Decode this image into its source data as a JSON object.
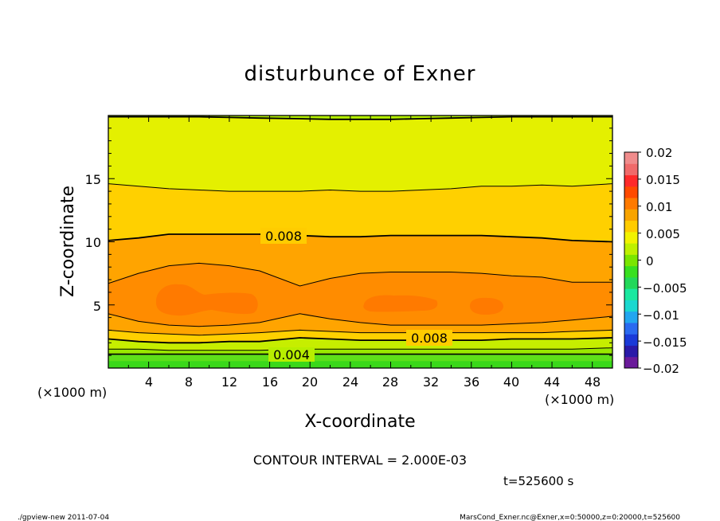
{
  "chart_data": {
    "type": "heatmap",
    "title": "disturbunce of Exner",
    "xlabel": "X-coordinate",
    "ylabel": "Z-coordinate",
    "x_unit": "(×1000 m)",
    "z_unit": "(×1000 m)",
    "xlim": [
      0,
      50
    ],
    "ylim": [
      0,
      20
    ],
    "xticks": [
      "4",
      "8",
      "12",
      "16",
      "20",
      "24",
      "28",
      "32",
      "36",
      "40",
      "44",
      "48"
    ],
    "yticks": [
      "5",
      "10",
      "15"
    ],
    "contour_labels": [
      "0.008",
      "0.008",
      "0.004"
    ],
    "contour_levels": [
      {
        "value": 0.004,
        "z": [
          1.1,
          1.1,
          1.1,
          1.1,
          1.1,
          1.1,
          1.1,
          1.1,
          1.1,
          1.1,
          1.1,
          1.1,
          1.1,
          1.1,
          1.1,
          1.1,
          1.1
        ]
      },
      {
        "value": 0.006,
        "z": [
          1.5,
          1.5,
          1.4,
          1.4,
          1.4,
          1.4,
          1.5,
          1.5,
          1.5,
          1.5,
          1.5,
          1.5,
          1.5,
          1.5,
          1.5,
          1.5,
          1.6
        ]
      },
      {
        "value": 0.008,
        "z": [
          2.3,
          2.1,
          2.0,
          2.0,
          2.1,
          2.1,
          2.4,
          2.3,
          2.2,
          2.2,
          2.2,
          2.2,
          2.2,
          2.3,
          2.3,
          2.3,
          2.4
        ]
      },
      {
        "value": 0.01,
        "z": [
          3.0,
          2.8,
          2.7,
          2.6,
          2.7,
          2.8,
          3.0,
          2.9,
          2.8,
          2.8,
          2.8,
          2.8,
          2.8,
          2.8,
          2.8,
          2.9,
          3.0
        ]
      },
      {
        "value": 0.012,
        "z": [
          4.3,
          3.7,
          3.4,
          3.3,
          3.4,
          3.6,
          4.3,
          3.9,
          3.6,
          3.4,
          3.4,
          3.4,
          3.4,
          3.5,
          3.6,
          3.8,
          4.1
        ]
      },
      {
        "value": 0.012,
        "z": [
          6.7,
          7.5,
          8.1,
          8.3,
          8.1,
          7.7,
          6.5,
          7.1,
          7.5,
          7.6,
          7.6,
          7.6,
          7.5,
          7.3,
          7.2,
          6.8,
          6.8
        ]
      },
      {
        "value": 0.01,
        "z": [
          10.1,
          10.3,
          10.6,
          10.6,
          10.6,
          10.6,
          10.5,
          10.4,
          10.4,
          10.5,
          10.5,
          10.5,
          10.5,
          10.4,
          10.3,
          10.1,
          10.0
        ]
      },
      {
        "value": 0.008,
        "z": [
          14.6,
          14.4,
          14.2,
          14.1,
          14.0,
          14.0,
          14.0,
          14.1,
          14.0,
          14.0,
          14.1,
          14.2,
          14.4,
          14.4,
          14.5,
          14.4,
          14.6
        ]
      },
      {
        "value": 0.006,
        "z": [
          19.9,
          19.9,
          19.9,
          19.9,
          19.85,
          19.8,
          19.75,
          19.7,
          19.7,
          19.7,
          19.75,
          19.8,
          19.85,
          19.9,
          19.9,
          19.9,
          19.9
        ]
      }
    ],
    "contour_x": [
      0,
      3,
      6,
      9,
      12,
      15,
      19,
      22,
      25,
      28,
      31,
      34,
      37,
      40,
      43,
      46,
      50
    ],
    "colorbar": {
      "labels": [
        "0.02",
        "0.015",
        "0.01",
        "0.005",
        "0",
        "−0.005",
        "−0.01",
        "−0.015",
        "−0.02"
      ],
      "range": [
        -0.02,
        0.02
      ],
      "colors": [
        "#6a1a9a",
        "#2a1aa8",
        "#1a3ad8",
        "#2a6af0",
        "#22a6f0",
        "#1ad8d0",
        "#1ae8a0",
        "#22d85a",
        "#38e020",
        "#7ae600",
        "#bff000",
        "#f2f200",
        "#ffcc00",
        "#f8a400",
        "#ff7a00",
        "#ff4a00",
        "#ff2a2a",
        "#f06a6a",
        "#f08c8c"
      ]
    },
    "grid": false
  },
  "footer": {
    "contour_interval": "CONTOUR INTERVAL = 2.000E-03",
    "time": "t=525600 s",
    "program": "./gpview-new   2011-07-04",
    "source": "MarsCond_Exner.nc@Exner,x=0:50000,z=0:20000,t=525600"
  }
}
